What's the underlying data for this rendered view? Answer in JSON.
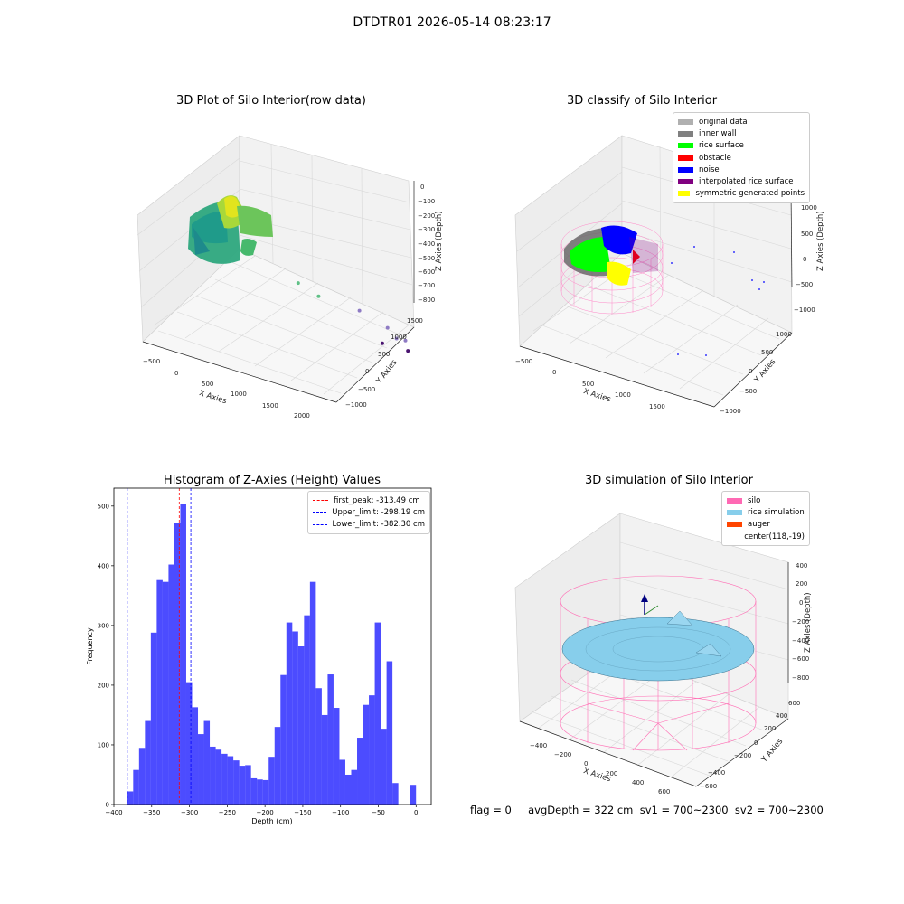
{
  "suptitle": "DTDTR01 2026-05-14 08:23:17",
  "status_text": "flag = 0     avgDepth = 322 cm  sv1 = 700~2300  sv2 = 700~2300",
  "chart_data": [
    {
      "type": "scatter",
      "title": "3D Plot of Silo Interior(row data)",
      "xlabel": "X Axies",
      "ylabel": "Y Axies",
      "zlabel": "Z Axies (Depth)",
      "x_ticks": [
        "−500",
        "0",
        "500",
        "1000",
        "1500",
        "2000"
      ],
      "y_ticks": [
        "−1000",
        "−500",
        "0",
        "500",
        "1000",
        "1500"
      ],
      "z_ticks": [
        "0",
        "−100",
        "−200",
        "−300",
        "−400",
        "−500",
        "−600",
        "−700",
        "−800"
      ],
      "colormap": "viridis",
      "outlier_points": [
        {
          "x": 700,
          "y": 100,
          "z": -430
        },
        {
          "x": 900,
          "y": 300,
          "z": -500
        },
        {
          "x": 1300,
          "y": 700,
          "z": -560
        },
        {
          "x": 1600,
          "y": 900,
          "z": -640
        },
        {
          "x": 1750,
          "y": 800,
          "z": -680
        },
        {
          "x": 1800,
          "y": 1000,
          "z": -700
        },
        {
          "x": 1400,
          "y": 1300,
          "z": -800
        },
        {
          "x": 1700,
          "y": 1400,
          "z": -810
        }
      ]
    },
    {
      "type": "scatter",
      "title": "3D classify of Silo Interior",
      "xlabel": "X Axies",
      "ylabel": "Y Axies",
      "zlabel": "Z Axies (Depth)",
      "x_ticks": [
        "−500",
        "0",
        "500",
        "1000",
        "1500"
      ],
      "y_ticks": [
        "−1000",
        "−500",
        "0",
        "500",
        "1000"
      ],
      "z_ticks": [
        "1000",
        "500",
        "0",
        "−500",
        "−1000"
      ],
      "legend": [
        {
          "label": "original data",
          "color": "#b0b0b0"
        },
        {
          "label": "inner wall",
          "color": "#808080"
        },
        {
          "label": "rice surface",
          "color": "#00ff00"
        },
        {
          "label": "obstacle",
          "color": "#ff0000"
        },
        {
          "label": "noise",
          "color": "#0000ff"
        },
        {
          "label": "interpolated rice surface",
          "color": "#800080"
        },
        {
          "label": "symmetric generated points",
          "color": "#ffff00"
        }
      ]
    },
    {
      "type": "bar",
      "title": "Histogram of Z-Axies (Height) Values",
      "xlabel": "Depth (cm)",
      "ylabel": "Frequency",
      "xlim": [
        -400,
        20
      ],
      "ylim": [
        0,
        530
      ],
      "x_ticks": [
        -400,
        -350,
        -300,
        -250,
        -200,
        -150,
        -100,
        -50,
        0
      ],
      "y_ticks": [
        0,
        100,
        200,
        300,
        400,
        500
      ],
      "bin_width": 7.8,
      "bar_color": "#0000ff",
      "bin_starts": [
        -382.3,
        -374.5,
        -366.7,
        -358.9,
        -351.1,
        -343.3,
        -335.5,
        -327.7,
        -319.9,
        -312.1,
        -304.3,
        -296.5,
        -288.7,
        -280.9,
        -273.1,
        -265.3,
        -257.5,
        -249.7,
        -241.9,
        -234.1,
        -226.3,
        -218.5,
        -210.7,
        -202.9,
        -195.1,
        -187.3,
        -179.5,
        -171.7,
        -163.9,
        -156.1,
        -148.3,
        -140.5,
        -132.7,
        -124.9,
        -117.1,
        -109.3,
        -101.5,
        -93.7,
        -85.9,
        -78.1,
        -70.3,
        -62.5,
        -54.7,
        -46.9,
        -39.1,
        -31.3,
        -23.5,
        -15.7,
        -7.9
      ],
      "values": [
        22,
        58,
        95,
        140,
        288,
        376,
        373,
        402,
        472,
        503,
        205,
        163,
        118,
        140,
        97,
        92,
        85,
        81,
        74,
        65,
        66,
        44,
        42,
        41,
        80,
        130,
        217,
        305,
        290,
        265,
        317,
        373,
        195,
        150,
        218,
        162,
        75,
        50,
        58,
        112,
        167,
        183,
        305,
        127,
        240,
        36,
        0,
        0,
        33
      ],
      "vlines": [
        {
          "label": "first_peak: -313.49 cm",
          "x": -313.49,
          "color": "#ff0000"
        },
        {
          "label": "Upper_limit: -298.19 cm",
          "x": -298.19,
          "color": "#0000ff"
        },
        {
          "label": "Lower_limit: -382.30 cm",
          "x": -382.3,
          "color": "#0000ff"
        }
      ]
    },
    {
      "type": "area",
      "title": "3D simulation of Silo Interior",
      "xlabel": "X Axies",
      "ylabel": "Y Axies",
      "zlabel": "Z Axies (Depth)",
      "x_ticks": [
        "−400",
        "−200",
        "0",
        "200",
        "400",
        "600"
      ],
      "y_ticks": [
        "−600",
        "−400",
        "−200",
        "0",
        "200",
        "400",
        "600"
      ],
      "z_ticks": [
        "400",
        "200",
        "0",
        "−200",
        "−400",
        "−600",
        "−800"
      ],
      "legend": [
        {
          "label": "silo",
          "color": "#ff69b4"
        },
        {
          "label": "rice simulation",
          "color": "#87ceeb"
        },
        {
          "label": "auger",
          "color": "#ff4500"
        },
        {
          "label": "center(118,-19)",
          "color": ""
        }
      ]
    }
  ]
}
